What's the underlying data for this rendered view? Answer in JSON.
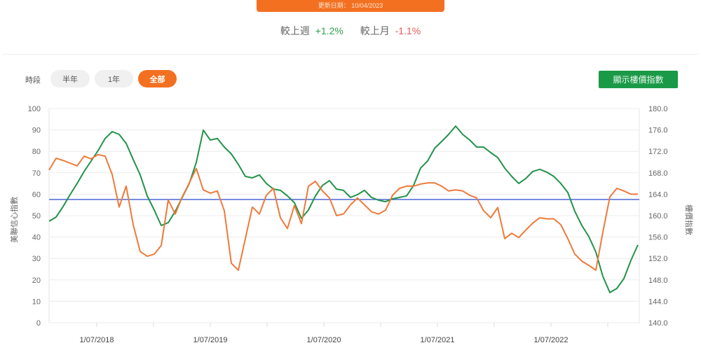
{
  "header": {
    "update_label": "更新日期： 10/04/2023"
  },
  "comparison": {
    "week_label": "較上週",
    "week_value": "+1.2%",
    "month_label": "較上月",
    "month_value": "-1.1%"
  },
  "controls": {
    "period_label": "時段",
    "periods": [
      {
        "label": "半年",
        "active": false
      },
      {
        "label": "1年",
        "active": false
      },
      {
        "label": "全部",
        "active": true
      }
    ],
    "show_index_button": "顯示樓價指數"
  },
  "colors": {
    "accent_orange": "#f37021",
    "green_button": "#1a9a47",
    "confidence_line": "#22924a",
    "price_line": "#ee7a3a",
    "reference_line": "#4a66d8",
    "up": "#2e9e4f",
    "down": "#e35a5a"
  },
  "chart_data": {
    "type": "line",
    "title": "",
    "xlabel": "",
    "ylabel": "美聯信心指數",
    "ylabel_right": "樓價指數",
    "ylim": [
      0,
      100
    ],
    "ylim_right": [
      140.0,
      180.0
    ],
    "yticks": [
      "0",
      "10",
      "20",
      "30",
      "40",
      "50",
      "60",
      "70",
      "80",
      "90",
      "100"
    ],
    "yticks_right": [
      "140.0",
      "144.0",
      "148.0",
      "152.0",
      "156.0",
      "160.0",
      "164.0",
      "168.0",
      "172.0",
      "176.0",
      "180.0"
    ],
    "xticks": [
      "1/07/2018",
      "1/07/2019",
      "1/07/2020",
      "1/07/2021",
      "1/07/2022"
    ],
    "grid": true,
    "reference_line": {
      "axis": "left",
      "value": 57.5
    },
    "x_range": [
      "2018-02",
      "2023-04"
    ],
    "series": [
      {
        "name": "美聯信心指數",
        "axis": "left",
        "color": "#22924a",
        "values": [
          47.4,
          49.3,
          54.2,
          59.8,
          65.0,
          70.6,
          75.5,
          80.4,
          86.0,
          89.2,
          87.9,
          83.7,
          76.2,
          69.0,
          59.2,
          52.6,
          45.4,
          46.7,
          52.0,
          58.5,
          65.0,
          74.8,
          89.9,
          85.3,
          86.0,
          82.0,
          78.8,
          73.9,
          68.3,
          67.6,
          69.0,
          65.0,
          62.4,
          61.8,
          59.2,
          56.0,
          48.7,
          52.6,
          59.2,
          64.1,
          66.3,
          62.4,
          61.8,
          58.5,
          59.8,
          61.8,
          58.5,
          57.2,
          56.5,
          57.8,
          58.5,
          59.2,
          64.1,
          72.2,
          75.5,
          81.4,
          84.6,
          87.9,
          91.8,
          87.9,
          85.3,
          82.0,
          82.0,
          79.4,
          77.1,
          72.2,
          68.3,
          65.0,
          67.3,
          70.6,
          71.6,
          70.3,
          68.3,
          65.0,
          60.8,
          52.0,
          45.4,
          40.2,
          33.0,
          21.6,
          14.1,
          16.0,
          20.6,
          29.1,
          36.3
        ]
      },
      {
        "name": "樓價指數",
        "axis": "right",
        "color": "#ee7a3a",
        "values": [
          168.5,
          170.7,
          170.3,
          169.8,
          169.3,
          171.1,
          170.6,
          171.4,
          171.1,
          167.7,
          161.6,
          165.5,
          158.3,
          153.3,
          152.4,
          152.8,
          154.4,
          162.9,
          160.3,
          163.5,
          166.1,
          168.8,
          164.8,
          164.2,
          164.6,
          160.9,
          151.1,
          149.8,
          155.7,
          161.6,
          160.3,
          163.8,
          165.1,
          159.6,
          157.6,
          161.9,
          158.5,
          165.5,
          166.4,
          164.6,
          163.3,
          160.0,
          160.3,
          162.0,
          163.3,
          162.0,
          160.7,
          160.3,
          161.0,
          163.8,
          165.1,
          165.5,
          165.5,
          165.9,
          166.1,
          166.1,
          165.5,
          164.6,
          164.8,
          164.6,
          163.8,
          163.3,
          160.9,
          159.6,
          161.5,
          155.7,
          156.7,
          155.9,
          157.3,
          158.6,
          159.6,
          159.4,
          159.4,
          158.3,
          155.7,
          152.8,
          151.5,
          150.7,
          149.8,
          156.9,
          163.5,
          165.1,
          164.6,
          164.0,
          164.0
        ]
      }
    ]
  }
}
